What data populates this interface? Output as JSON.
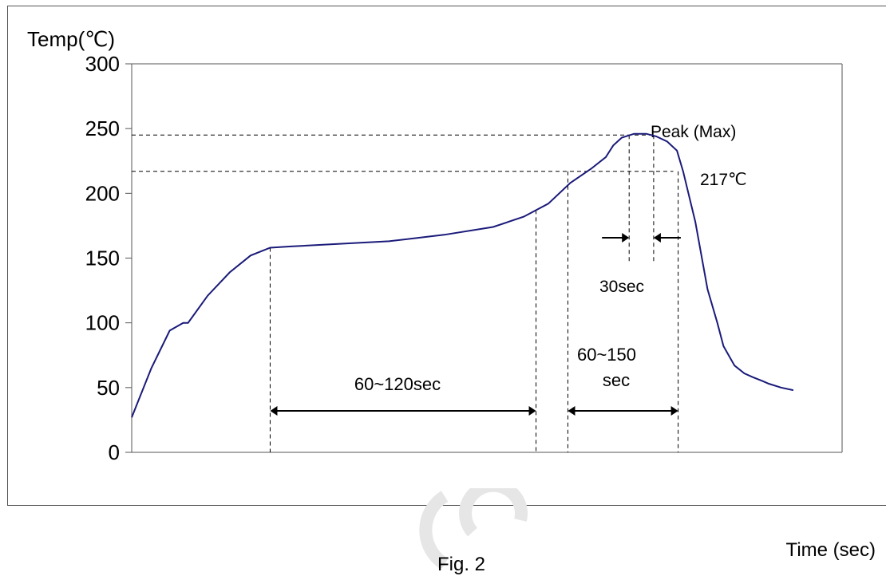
{
  "chart_data": {
    "type": "line",
    "ylabel": "Temp(℃)",
    "xlabel": "Time (sec)",
    "caption": "Fig. 2",
    "ylim": [
      0,
      300
    ],
    "yticks": [
      "0",
      "50",
      "100",
      "150",
      "200",
      "250",
      "300"
    ],
    "grid": false,
    "series": [
      {
        "color": "#1a1a7a",
        "x": [
          0,
          16,
          31,
          42,
          46,
          62,
          80,
          97,
          113,
          130,
          170,
          210,
          255,
          295,
          320,
          340,
          358,
          375,
          387,
          393,
          400,
          410,
          420,
          428,
          437,
          445,
          450,
          460,
          470,
          478,
          483,
          492,
          500,
          507,
          515,
          520,
          530,
          540
        ],
        "y": [
          27,
          65,
          94,
          100,
          100,
          121,
          139,
          152,
          158,
          159,
          161,
          163,
          168,
          174,
          182,
          192,
          208,
          219,
          228,
          237,
          243,
          246,
          246,
          244,
          240,
          233,
          217,
          178,
          126,
          100,
          82,
          67,
          61,
          58,
          55,
          53,
          50,
          48
        ]
      }
    ],
    "reference_lines": [
      {
        "axis": "y",
        "value": 245,
        "label": "Peak (Max)"
      },
      {
        "axis": "y",
        "value": 217,
        "label": "217℃"
      }
    ],
    "annotations": [
      {
        "label": "60~120sec",
        "from_x": 113,
        "to_x": 330
      },
      {
        "label": "60~150 sec",
        "line1": "60~150",
        "line2": "sec",
        "from_x": 356,
        "to_x": 446
      },
      {
        "label": "30sec",
        "from_x": 406,
        "to_x": 426
      }
    ]
  }
}
